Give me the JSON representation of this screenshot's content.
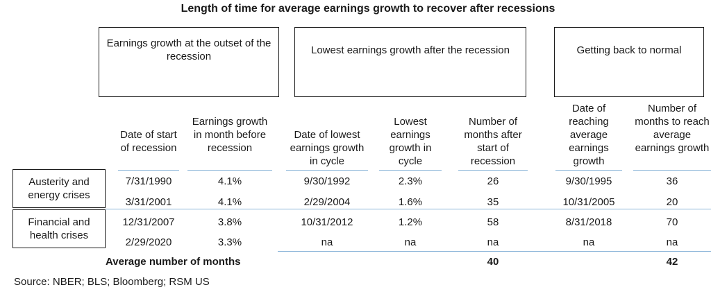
{
  "title": "Length of time for average earnings growth to recover after recessions",
  "groups": {
    "outset": "Earnings growth at the outset of the recession",
    "lowest": "Lowest earnings growth after the recession",
    "normal": "Getting back to normal"
  },
  "columns": [
    "Date of start of recession",
    "Earnings growth in month before recession",
    "Date of lowest earnings growth in cycle",
    "Lowest earnings growth in cycle",
    "Number of months after start of recession",
    "Date of reaching average earnings growth",
    "Number of months to reach average earnings growth"
  ],
  "categories": [
    "Austerity and energy crises",
    "Financial and health crises"
  ],
  "rows": [
    [
      "7/31/1990",
      "4.1%",
      "9/30/1992",
      "2.3%",
      "26",
      "9/30/1995",
      "36"
    ],
    [
      "3/31/2001",
      "4.1%",
      "2/29/2004",
      "1.6%",
      "35",
      "10/31/2005",
      "20"
    ],
    [
      "12/31/2007",
      "3.8%",
      "10/31/2012",
      "1.2%",
      "58",
      "8/31/2018",
      "70"
    ],
    [
      "2/29/2020",
      "3.3%",
      "na",
      "na",
      "na",
      "na",
      "na"
    ]
  ],
  "average": {
    "label": "Average number of months",
    "months_after_start": "40",
    "months_to_reach": "42"
  },
  "source": "Source: NBER; BLS; Bloomberg; RSM US"
}
